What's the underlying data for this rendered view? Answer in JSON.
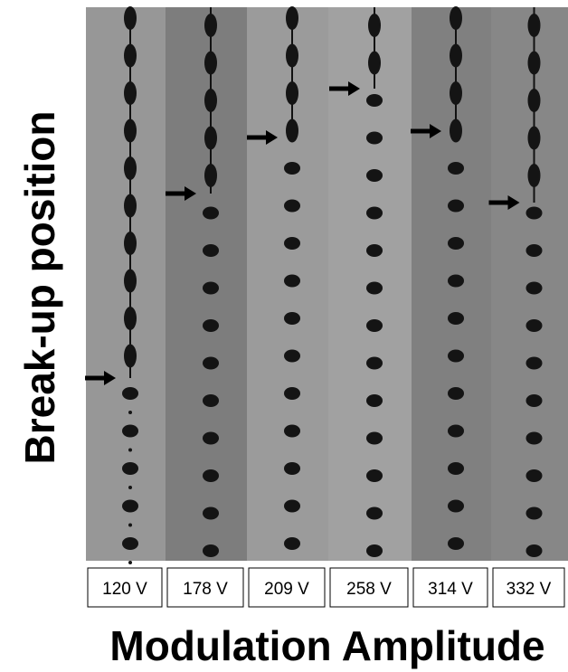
{
  "y_label": "Break-up position",
  "x_label": "Modulation Amplitude",
  "panels": [
    "120 V",
    "178 V",
    "209 V",
    "258 V",
    "314 V",
    "332 V"
  ]
}
